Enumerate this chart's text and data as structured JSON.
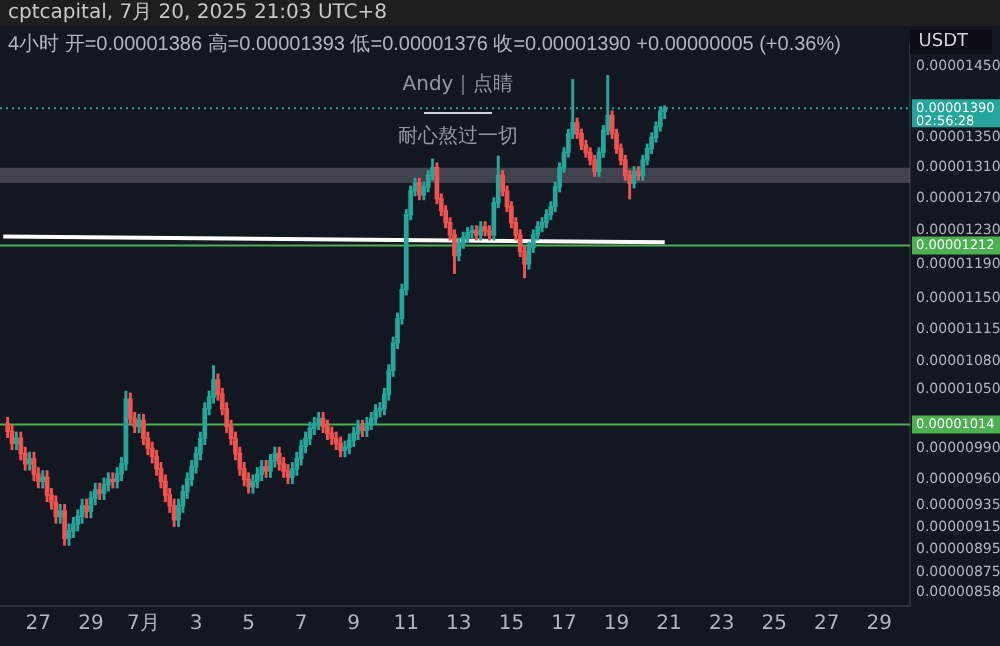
{
  "chart_data": {
    "type": "candlestick",
    "title": "4小时 开=0.00001386 高=0.00001393 低=0.00001376 收=0.00001390 +0.00000005 (+0.36%)",
    "subtitle": "cptcapital, 7月 20, 2025 21:03 UTC+8",
    "annotations": [
      "Andy｜点睛",
      "耐心熬过一切",
      "02:56:28",
      "USDT"
    ],
    "log": "y",
    "grid": false,
    "legend": false,
    "xlim": [
      "2025-06-25T13:00",
      "2025-07-30T04:00"
    ],
    "xticks": [
      {
        "value": "2025-06-27",
        "label": "27"
      },
      {
        "value": "2025-06-29",
        "label": "29"
      },
      {
        "value": "2025-07-01",
        "label": "7月"
      },
      {
        "value": "2025-07-03",
        "label": "3"
      },
      {
        "value": "2025-07-05",
        "label": "5"
      },
      {
        "value": "2025-07-07",
        "label": "7"
      },
      {
        "value": "2025-07-09",
        "label": "9"
      },
      {
        "value": "2025-07-11",
        "label": "11"
      },
      {
        "value": "2025-07-13",
        "label": "13"
      },
      {
        "value": "2025-07-15",
        "label": "15"
      },
      {
        "value": "2025-07-17",
        "label": "17"
      },
      {
        "value": "2025-07-19",
        "label": "19"
      },
      {
        "value": "2025-07-21",
        "label": "21"
      },
      {
        "value": "2025-07-23",
        "label": "23"
      },
      {
        "value": "2025-07-25",
        "label": "25"
      },
      {
        "value": "2025-07-27",
        "label": "27"
      },
      {
        "value": "2025-07-29",
        "label": "29"
      }
    ],
    "ylim": [
      8.46e-06,
      1.482e-05
    ],
    "yticks": [
      {
        "value": 1.45e-05,
        "label": "0.00001450"
      },
      {
        "value": 1.35e-05,
        "label": "0.00001350"
      },
      {
        "value": 1.31e-05,
        "label": "0.00001310"
      },
      {
        "value": 1.27e-05,
        "label": "0.00001270"
      },
      {
        "value": 1.23e-05,
        "label": "0.00001230"
      },
      {
        "value": 1.19e-05,
        "label": "0.00001190"
      },
      {
        "value": 1.15e-05,
        "label": "0.00001150"
      },
      {
        "value": 1.115e-05,
        "label": "0.00001115"
      },
      {
        "value": 1.08e-05,
        "label": "0.00001080"
      },
      {
        "value": 1.05e-05,
        "label": "0.00001050"
      },
      {
        "value": 9.9e-06,
        "label": "0.00000990"
      },
      {
        "value": 9.6e-06,
        "label": "0.00000960"
      },
      {
        "value": 9.35e-06,
        "label": "0.00000935"
      },
      {
        "value": 9.15e-06,
        "label": "0.00000915"
      },
      {
        "value": 8.95e-06,
        "label": "0.00000895"
      },
      {
        "value": 8.75e-06,
        "label": "0.00000875"
      },
      {
        "value": 8.58e-06,
        "label": "0.00000858"
      }
    ],
    "ref_lines": [
      {
        "axis": "y",
        "value": 1.39e-05,
        "label": "0.00001390",
        "color": "#26a69a",
        "line_style": "dotted"
      },
      {
        "axis": "y",
        "value": 1.212e-05,
        "label": "0.00001212",
        "color": "#4caf50",
        "line_style": "solid"
      },
      {
        "axis": "y",
        "value": 1.014e-05,
        "label": "0.00001014",
        "color": "#4caf50",
        "line_style": "solid"
      }
    ],
    "bands": [
      {
        "axis": "y",
        "from": 1.29e-05,
        "to": 1.31e-05,
        "color": "#787b86"
      }
    ],
    "series": [
      {
        "type": "line",
        "x": [
          "2025-06-25T16:00",
          "2025-07-20T20:00"
        ],
        "values": [
          1.223e-05,
          1.216e-05
        ],
        "color": "#ffffff"
      }
    ],
    "x": [
      "2025-06-25T20:00",
      "2025-06-26T00:00",
      "2025-06-26T04:00",
      "2025-06-26T08:00",
      "2025-06-26T12:00",
      "2025-06-26T16:00",
      "2025-06-26T20:00",
      "2025-06-27T00:00",
      "2025-06-27T04:00",
      "2025-06-27T08:00",
      "2025-06-27T12:00",
      "2025-06-27T16:00",
      "2025-06-27T20:00",
      "2025-06-28T00:00",
      "2025-06-28T04:00",
      "2025-06-28T08:00",
      "2025-06-28T12:00",
      "2025-06-28T16:00",
      "2025-06-28T20:00",
      "2025-06-29T00:00",
      "2025-06-29T04:00",
      "2025-06-29T08:00",
      "2025-06-29T12:00",
      "2025-06-29T16:00",
      "2025-06-29T20:00",
      "2025-06-30T00:00",
      "2025-06-30T04:00",
      "2025-06-30T08:00",
      "2025-06-30T12:00",
      "2025-06-30T16:00",
      "2025-06-30T20:00",
      "2025-07-01T00:00",
      "2025-07-01T04:00",
      "2025-07-01T08:00",
      "2025-07-01T12:00",
      "2025-07-01T16:00",
      "2025-07-01T20:00",
      "2025-07-02T00:00",
      "2025-07-02T04:00",
      "2025-07-02T08:00",
      "2025-07-02T12:00",
      "2025-07-02T16:00",
      "2025-07-02T20:00",
      "2025-07-03T00:00",
      "2025-07-03T04:00",
      "2025-07-03T08:00",
      "2025-07-03T12:00",
      "2025-07-03T16:00",
      "2025-07-03T20:00",
      "2025-07-04T00:00",
      "2025-07-04T04:00",
      "2025-07-04T08:00",
      "2025-07-04T12:00",
      "2025-07-04T16:00",
      "2025-07-04T20:00",
      "2025-07-05T00:00",
      "2025-07-05T04:00",
      "2025-07-05T08:00",
      "2025-07-05T12:00",
      "2025-07-05T16:00",
      "2025-07-05T20:00",
      "2025-07-06T00:00",
      "2025-07-06T04:00",
      "2025-07-06T08:00",
      "2025-07-06T12:00",
      "2025-07-06T16:00",
      "2025-07-06T20:00",
      "2025-07-07T00:00",
      "2025-07-07T04:00",
      "2025-07-07T08:00",
      "2025-07-07T12:00",
      "2025-07-07T16:00",
      "2025-07-07T20:00",
      "2025-07-08T00:00",
      "2025-07-08T04:00",
      "2025-07-08T08:00",
      "2025-07-08T12:00",
      "2025-07-08T16:00",
      "2025-07-08T20:00",
      "2025-07-09T00:00",
      "2025-07-09T04:00",
      "2025-07-09T08:00",
      "2025-07-09T12:00",
      "2025-07-09T16:00",
      "2025-07-09T20:00",
      "2025-07-10T00:00",
      "2025-07-10T04:00",
      "2025-07-10T08:00",
      "2025-07-10T12:00",
      "2025-07-10T16:00",
      "2025-07-10T20:00",
      "2025-07-11T00:00",
      "2025-07-11T04:00",
      "2025-07-11T08:00",
      "2025-07-11T12:00",
      "2025-07-11T16:00",
      "2025-07-11T20:00",
      "2025-07-12T00:00",
      "2025-07-12T04:00",
      "2025-07-12T08:00",
      "2025-07-12T12:00",
      "2025-07-12T16:00",
      "2025-07-12T20:00",
      "2025-07-13T00:00",
      "2025-07-13T04:00",
      "2025-07-13T08:00",
      "2025-07-13T12:00",
      "2025-07-13T16:00",
      "2025-07-13T20:00",
      "2025-07-14T00:00",
      "2025-07-14T04:00",
      "2025-07-14T08:00",
      "2025-07-14T12:00",
      "2025-07-14T16:00",
      "2025-07-14T20:00",
      "2025-07-15T00:00",
      "2025-07-15T04:00",
      "2025-07-15T08:00",
      "2025-07-15T12:00",
      "2025-07-15T16:00",
      "2025-07-15T20:00",
      "2025-07-16T00:00",
      "2025-07-16T04:00",
      "2025-07-16T08:00",
      "2025-07-16T12:00",
      "2025-07-16T16:00",
      "2025-07-16T20:00",
      "2025-07-17T00:00",
      "2025-07-17T04:00",
      "2025-07-17T08:00",
      "2025-07-17T12:00",
      "2025-07-17T16:00",
      "2025-07-17T20:00",
      "2025-07-18T00:00",
      "2025-07-18T04:00",
      "2025-07-18T08:00",
      "2025-07-18T12:00",
      "2025-07-18T16:00",
      "2025-07-18T20:00",
      "2025-07-19T00:00",
      "2025-07-19T04:00",
      "2025-07-19T08:00",
      "2025-07-19T12:00",
      "2025-07-19T16:00",
      "2025-07-19T20:00",
      "2025-07-20T00:00",
      "2025-07-20T04:00",
      "2025-07-20T08:00",
      "2025-07-20T12:00",
      "2025-07-20T16:00",
      "2025-07-20T20:00"
    ],
    "ohlc": [
      [
        1.015e-05,
        1.021e-05,
        1.001e-05,
        1.007e-05
      ],
      [
        1.007e-05,
        1.013e-05,
        9.89e-06,
        9.95e-06
      ],
      [
        9.95e-06,
        1.006e-05,
        9.89e-06,
        1e-05
      ],
      [
        1e-05,
        1.006e-05,
        9.79e-06,
        9.85e-06
      ],
      [
        9.85e-06,
        9.91e-06,
        9.69e-06,
        9.75e-06
      ],
      [
        9.75e-06,
        9.86e-06,
        9.69e-06,
        9.8e-06
      ],
      [
        9.8e-06,
        9.86e-06,
        9.59e-06,
        9.65e-06
      ],
      [
        9.65e-06,
        9.71e-06,
        9.52e-06,
        9.58e-06
      ],
      [
        9.58e-06,
        9.68e-06,
        9.52e-06,
        9.62e-06
      ],
      [
        9.62e-06,
        9.68e-06,
        9.39e-06,
        9.45e-06
      ],
      [
        9.45e-06,
        9.51e-06,
        9.32e-06,
        9.38e-06
      ],
      [
        9.38e-06,
        9.44e-06,
        9.19e-06,
        9.25e-06
      ],
      [
        9.25e-06,
        9.36e-06,
        9.19e-06,
        9.3e-06
      ],
      [
        9.3e-06,
        9.36e-06,
        8.99e-06,
        9.05e-06
      ],
      [
        9.05e-06,
        9.18e-06,
        8.99e-06,
        9.12e-06
      ],
      [
        9.12e-06,
        9.24e-06,
        9.06e-06,
        9.18e-06
      ],
      [
        9.18e-06,
        9.31e-06,
        9.12e-06,
        9.25e-06
      ],
      [
        9.25e-06,
        9.41e-06,
        9.19e-06,
        9.35e-06
      ],
      [
        9.35e-06,
        9.41e-06,
        9.24e-06,
        9.3e-06
      ],
      [
        9.3e-06,
        9.48e-06,
        9.24e-06,
        9.42e-06
      ],
      [
        9.42e-06,
        9.56e-06,
        9.36e-06,
        9.5e-06
      ],
      [
        9.5e-06,
        9.56e-06,
        9.41e-06,
        9.47e-06
      ],
      [
        9.47e-06,
        9.61e-06,
        9.41e-06,
        9.55e-06
      ],
      [
        9.55e-06,
        9.66e-06,
        9.49e-06,
        9.6e-06
      ],
      [
        9.6e-06,
        9.66e-06,
        9.52e-06,
        9.58e-06
      ],
      [
        9.58e-06,
        9.71e-06,
        9.52e-06,
        9.65e-06
      ],
      [
        9.65e-06,
        9.81e-06,
        9.59e-06,
        9.75e-06
      ],
      [
        9.75e-06,
        1.048e-05,
        9.69e-06,
        1.04e-05
      ],
      [
        1.04e-05,
        1.046e-05,
        1.014e-05,
        1.02e-05
      ],
      [
        1.02e-05,
        1.026e-05,
        1.006e-05,
        1.012e-05
      ],
      [
        1.012e-05,
        1.024e-05,
        1.006e-05,
        1.018e-05
      ],
      [
        1.018e-05,
        1.024e-05,
        9.94e-06,
        1e-05
      ],
      [
        1e-05,
        1.006e-05,
        9.84e-06,
        9.9e-06
      ],
      [
        9.9e-06,
        9.96e-06,
        9.76e-06,
        9.82e-06
      ],
      [
        9.82e-06,
        9.88e-06,
        9.64e-06,
        9.7e-06
      ],
      [
        9.7e-06,
        9.76e-06,
        9.52e-06,
        9.58e-06
      ],
      [
        9.58e-06,
        9.64e-06,
        9.39e-06,
        9.45e-06
      ],
      [
        9.45e-06,
        9.51e-06,
        9.29e-06,
        9.35e-06
      ],
      [
        9.35e-06,
        9.41e-06,
        9.16e-06,
        9.22e-06
      ],
      [
        9.22e-06,
        9.41e-06,
        9.16e-06,
        9.35e-06
      ],
      [
        9.35e-06,
        9.54e-06,
        9.29e-06,
        9.48e-06
      ],
      [
        9.48e-06,
        9.66e-06,
        9.42e-06,
        9.6e-06
      ],
      [
        9.6e-06,
        9.78e-06,
        9.54e-06,
        9.72e-06
      ],
      [
        9.72e-06,
        9.91e-06,
        9.66e-06,
        9.85e-06
      ],
      [
        9.85e-06,
        1.006e-05,
        9.79e-06,
        1e-05
      ],
      [
        1e-05,
        1.036e-05,
        9.94e-06,
        1.03e-05
      ],
      [
        1.03e-05,
        1.048e-05,
        1.024e-05,
        1.042e-05
      ],
      [
        1.042e-05,
        1.075e-05,
        1.036e-05,
        1.06e-05
      ],
      [
        1.06e-05,
        1.066e-05,
        1.039e-05,
        1.045e-05
      ],
      [
        1.045e-05,
        1.051e-05,
        1.024e-05,
        1.03e-05
      ],
      [
        1.03e-05,
        1.036e-05,
        1.006e-05,
        1.012e-05
      ],
      [
        1.012e-05,
        1.018e-05,
        9.94e-06,
        1e-05
      ],
      [
        1e-05,
        1.006e-05,
        9.79e-06,
        9.85e-06
      ],
      [
        9.85e-06,
        9.91e-06,
        9.64e-06,
        9.7e-06
      ],
      [
        9.7e-06,
        9.76e-06,
        9.54e-06,
        9.6e-06
      ],
      [
        9.6e-06,
        9.66e-06,
        9.47e-06,
        9.53e-06
      ],
      [
        9.53e-06,
        9.64e-06,
        9.47e-06,
        9.58e-06
      ],
      [
        9.58e-06,
        9.71e-06,
        9.52e-06,
        9.65e-06
      ],
      [
        9.65e-06,
        9.78e-06,
        9.59e-06,
        9.72e-06
      ],
      [
        9.72e-06,
        9.78e-06,
        9.62e-06,
        9.68e-06
      ],
      [
        9.68e-06,
        9.84e-06,
        9.62e-06,
        9.78e-06
      ],
      [
        9.78e-06,
        9.91e-06,
        9.72e-06,
        9.85e-06
      ],
      [
        9.85e-06,
        9.91e-06,
        9.69e-06,
        9.75e-06
      ],
      [
        9.75e-06,
        9.81e-06,
        9.62e-06,
        9.68e-06
      ],
      [
        9.68e-06,
        9.74e-06,
        9.56e-06,
        9.62e-06
      ],
      [
        9.62e-06,
        9.76e-06,
        9.56e-06,
        9.7e-06
      ],
      [
        9.7e-06,
        9.86e-06,
        9.64e-06,
        9.8e-06
      ],
      [
        9.8e-06,
        9.98e-06,
        9.74e-06,
        9.92e-06
      ],
      [
        9.92e-06,
        1.006e-05,
        9.86e-06,
        1e-05
      ],
      [
        1e-05,
        1.016e-05,
        9.94e-06,
        1.01e-05
      ],
      [
        1.01e-05,
        1.021e-05,
        1.004e-05,
        1.015e-05
      ],
      [
        1.015e-05,
        1.026e-05,
        1.009e-05,
        1.02e-05
      ],
      [
        1.02e-05,
        1.026e-05,
        1.006e-05,
        1.012e-05
      ],
      [
        1.012e-05,
        1.018e-05,
        9.99e-06,
        1.005e-05
      ],
      [
        1.005e-05,
        1.011e-05,
        9.94e-06,
        1e-05
      ],
      [
        1e-05,
        1.006e-05,
        9.89e-06,
        9.95e-06
      ],
      [
        9.95e-06,
        1.001e-05,
        9.82e-06,
        9.88e-06
      ],
      [
        9.88e-06,
        9.97e-06,
        9.82e-06,
        9.91e-06
      ],
      [
        9.91e-06,
        1.004e-05,
        9.85e-06,
        9.98e-06
      ],
      [
        9.98e-06,
        1.011e-05,
        9.92e-06,
        1.005e-05
      ],
      [
        1.005e-05,
        1.018e-05,
        9.99e-06,
        1.012e-05
      ],
      [
        1.012e-05,
        1.018e-05,
        1.002e-05,
        1.008e-05
      ],
      [
        1.008e-05,
        1.021e-05,
        1.002e-05,
        1.015e-05
      ],
      [
        1.015e-05,
        1.026e-05,
        1.009e-05,
        1.02e-05
      ],
      [
        1.02e-05,
        1.034e-05,
        1.014e-05,
        1.028e-05
      ],
      [
        1.028e-05,
        1.036e-05,
        1.022e-05,
        1.03e-05
      ],
      [
        1.03e-05,
        1.051e-05,
        1.024e-05,
        1.045e-05
      ],
      [
        1.045e-05,
        1.076e-05,
        1.039e-05,
        1.07e-05
      ],
      [
        1.07e-05,
        1.106e-05,
        1.064e-05,
        1.1e-05
      ],
      [
        1.1e-05,
        1.133e-05,
        1.094e-05,
        1.127e-05
      ],
      [
        1.127e-05,
        1.166e-05,
        1.121e-05,
        1.16e-05
      ],
      [
        1.16e-05,
        1.256e-05,
        1.154e-05,
        1.25e-05
      ],
      [
        1.25e-05,
        1.286e-05,
        1.244e-05,
        1.28e-05
      ],
      [
        1.28e-05,
        1.296e-05,
        1.274e-05,
        1.29e-05
      ],
      [
        1.29e-05,
        1.296e-05,
        1.269e-05,
        1.275e-05
      ],
      [
        1.275e-05,
        1.291e-05,
        1.269e-05,
        1.285e-05
      ],
      [
        1.285e-05,
        1.306e-05,
        1.279e-05,
        1.3e-05
      ],
      [
        1.3e-05,
        1.321e-05,
        1.294e-05,
        1.31e-05
      ],
      [
        1.31e-05,
        1.316e-05,
        1.264e-05,
        1.27e-05
      ],
      [
        1.27e-05,
        1.276e-05,
        1.249e-05,
        1.255e-05
      ],
      [
        1.255e-05,
        1.261e-05,
        1.234e-05,
        1.24e-05
      ],
      [
        1.24e-05,
        1.246e-05,
        1.219e-05,
        1.225e-05
      ],
      [
        1.225e-05,
        1.231e-05,
        1.179e-05,
        1.2e-05
      ],
      [
        1.2e-05,
        1.221e-05,
        1.194e-05,
        1.215e-05
      ],
      [
        1.215e-05,
        1.228e-05,
        1.209e-05,
        1.222e-05
      ],
      [
        1.222e-05,
        1.234e-05,
        1.216e-05,
        1.228e-05
      ],
      [
        1.228e-05,
        1.236e-05,
        1.222e-05,
        1.23e-05
      ],
      [
        1.23e-05,
        1.236e-05,
        1.219e-05,
        1.225e-05
      ],
      [
        1.225e-05,
        1.241e-05,
        1.219e-05,
        1.235e-05
      ],
      [
        1.235e-05,
        1.241e-05,
        1.224e-05,
        1.23e-05
      ],
      [
        1.23e-05,
        1.236e-05,
        1.219e-05,
        1.225e-05
      ],
      [
        1.225e-05,
        1.271e-05,
        1.219e-05,
        1.265e-05
      ],
      [
        1.265e-05,
        1.325e-05,
        1.259e-05,
        1.3e-05
      ],
      [
        1.3e-05,
        1.306e-05,
        1.274e-05,
        1.28e-05
      ],
      [
        1.28e-05,
        1.286e-05,
        1.254e-05,
        1.26e-05
      ],
      [
        1.26e-05,
        1.266e-05,
        1.234e-05,
        1.24e-05
      ],
      [
        1.24e-05,
        1.246e-05,
        1.219e-05,
        1.225e-05
      ],
      [
        1.225e-05,
        1.231e-05,
        1.199e-05,
        1.205e-05
      ],
      [
        1.205e-05,
        1.211e-05,
        1.174e-05,
        1.19e-05
      ],
      [
        1.19e-05,
        1.216e-05,
        1.184e-05,
        1.21e-05
      ],
      [
        1.21e-05,
        1.231e-05,
        1.204e-05,
        1.225e-05
      ],
      [
        1.225e-05,
        1.241e-05,
        1.219e-05,
        1.235e-05
      ],
      [
        1.235e-05,
        1.246e-05,
        1.229e-05,
        1.24e-05
      ],
      [
        1.24e-05,
        1.256e-05,
        1.234e-05,
        1.25e-05
      ],
      [
        1.25e-05,
        1.266e-05,
        1.244e-05,
        1.26e-05
      ],
      [
        1.26e-05,
        1.291e-05,
        1.254e-05,
        1.285e-05
      ],
      [
        1.285e-05,
        1.316e-05,
        1.279e-05,
        1.31e-05
      ],
      [
        1.31e-05,
        1.336e-05,
        1.304e-05,
        1.33e-05
      ],
      [
        1.33e-05,
        1.361e-05,
        1.324e-05,
        1.355e-05
      ],
      [
        1.355e-05,
        1.43e-05,
        1.349e-05,
        1.37e-05
      ],
      [
        1.37e-05,
        1.376e-05,
        1.349e-05,
        1.355e-05
      ],
      [
        1.355e-05,
        1.361e-05,
        1.334e-05,
        1.34e-05
      ],
      [
        1.34e-05,
        1.346e-05,
        1.324e-05,
        1.33e-05
      ],
      [
        1.33e-05,
        1.336e-05,
        1.314e-05,
        1.32e-05
      ],
      [
        1.32e-05,
        1.326e-05,
        1.299e-05,
        1.305e-05
      ],
      [
        1.305e-05,
        1.336e-05,
        1.299e-05,
        1.33e-05
      ],
      [
        1.33e-05,
        1.366e-05,
        1.324e-05,
        1.36e-05
      ],
      [
        1.36e-05,
        1.436e-05,
        1.354e-05,
        1.38e-05
      ],
      [
        1.38e-05,
        1.386e-05,
        1.349e-05,
        1.355e-05
      ],
      [
        1.355e-05,
        1.361e-05,
        1.329e-05,
        1.335e-05
      ],
      [
        1.335e-05,
        1.341e-05,
        1.314e-05,
        1.32e-05
      ],
      [
        1.32e-05,
        1.326e-05,
        1.294e-05,
        1.3e-05
      ],
      [
        1.3e-05,
        1.306e-05,
        1.27e-05,
        1.29e-05
      ],
      [
        1.29e-05,
        1.311e-05,
        1.284e-05,
        1.305e-05
      ],
      [
        1.305e-05,
        1.311e-05,
        1.294e-05,
        1.3e-05
      ],
      [
        1.3e-05,
        1.326e-05,
        1.294e-05,
        1.32e-05
      ],
      [
        1.32e-05,
        1.341e-05,
        1.314e-05,
        1.335e-05
      ],
      [
        1.335e-05,
        1.356e-05,
        1.329e-05,
        1.35e-05
      ],
      [
        1.35e-05,
        1.371e-05,
        1.344e-05,
        1.365e-05
      ],
      [
        1.365e-05,
        1.392e-05,
        1.359e-05,
        1.386e-05
      ],
      [
        1.386e-05,
        1.393e-05,
        1.376e-05,
        1.39e-05
      ]
    ]
  }
}
